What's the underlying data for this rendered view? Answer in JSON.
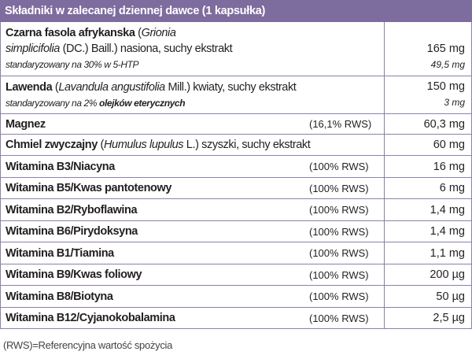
{
  "header": {
    "title": "Składniki w zalecanej dziennej dawce (1 kapsułka)"
  },
  "table": {
    "rows": [
      {
        "lines": [
          [
            {
              "text": "Czarna fasola afrykanska",
              "style": "bold"
            },
            {
              "text": " (",
              "style": "normal"
            },
            {
              "text": "Grionia",
              "style": "italic"
            }
          ],
          [
            {
              "text": "simplicifolia",
              "style": "italic"
            },
            {
              "text": " (DC.) Baill.) nasiona, suchy ekstrakt",
              "style": "normal"
            }
          ],
          [
            {
              "text": "standaryzowany na 30% w 5-HTP",
              "style": "small-italic"
            }
          ]
        ],
        "amount": "165 mg",
        "subamount": "49,5 mg"
      },
      {
        "lines": [
          [
            {
              "text": "Lawenda",
              "style": "bold"
            },
            {
              "text": " (",
              "style": "normal"
            },
            {
              "text": "Lavandula angustifolia",
              "style": "italic"
            },
            {
              "text": " Mill.) kwiaty, suchy ekstrakt",
              "style": "normal"
            }
          ],
          [
            {
              "text": "standaryzowany na 2% ",
              "style": "small-italic"
            },
            {
              "text": "olejków eterycznych",
              "style": "small-bold-italic"
            }
          ]
        ],
        "amount": "150 mg",
        "subamount": "3 mg"
      },
      {
        "lines": [
          [
            {
              "text": "Magnez",
              "style": "bold"
            }
          ]
        ],
        "rws": "(16,1% RWS)",
        "amount": "60,3 mg"
      },
      {
        "lines": [
          [
            {
              "text": "Chmiel zwyczajny",
              "style": "bold"
            },
            {
              "text": " (",
              "style": "normal"
            },
            {
              "text": "Humulus lupulus",
              "style": "italic"
            },
            {
              "text": " L.) szyszki, suchy ekstrakt",
              "style": "normal"
            }
          ]
        ],
        "amount": "60 mg"
      },
      {
        "lines": [
          [
            {
              "text": "Witamina B3/Niacyna",
              "style": "bold"
            }
          ]
        ],
        "rws": "(100% RWS)",
        "amount": "16 mg"
      },
      {
        "lines": [
          [
            {
              "text": "Witamina B5/Kwas pantotenowy",
              "style": "bold"
            }
          ]
        ],
        "rws": "(100% RWS)",
        "amount": "6 mg"
      },
      {
        "lines": [
          [
            {
              "text": "Witamina B2/Ryboflawina",
              "style": "bold"
            }
          ]
        ],
        "rws": "(100% RWS)",
        "amount": "1,4 mg"
      },
      {
        "lines": [
          [
            {
              "text": "Witamina B6/Pirydoksyna",
              "style": "bold"
            }
          ]
        ],
        "rws": "(100% RWS)",
        "amount": "1,4 mg"
      },
      {
        "lines": [
          [
            {
              "text": "Witamina B1/Tiamina",
              "style": "bold"
            }
          ]
        ],
        "rws": "(100% RWS)",
        "amount": "1,1 mg"
      },
      {
        "lines": [
          [
            {
              "text": "Witamina B9/Kwas foliowy",
              "style": "bold"
            }
          ]
        ],
        "rws": "(100% RWS)",
        "amount": "200 µg"
      },
      {
        "lines": [
          [
            {
              "text": "Witamina B8/Biotyna",
              "style": "bold"
            }
          ]
        ],
        "rws": "(100% RWS)",
        "amount": "50 µg"
      },
      {
        "lines": [
          [
            {
              "text": "Witamina B12/Cyjanokobalamina",
              "style": "bold"
            }
          ]
        ],
        "rws": "(100% RWS)",
        "amount": "2,5 µg"
      }
    ]
  },
  "footnote": "(RWS)=Referencyjna wartość spożycia"
}
